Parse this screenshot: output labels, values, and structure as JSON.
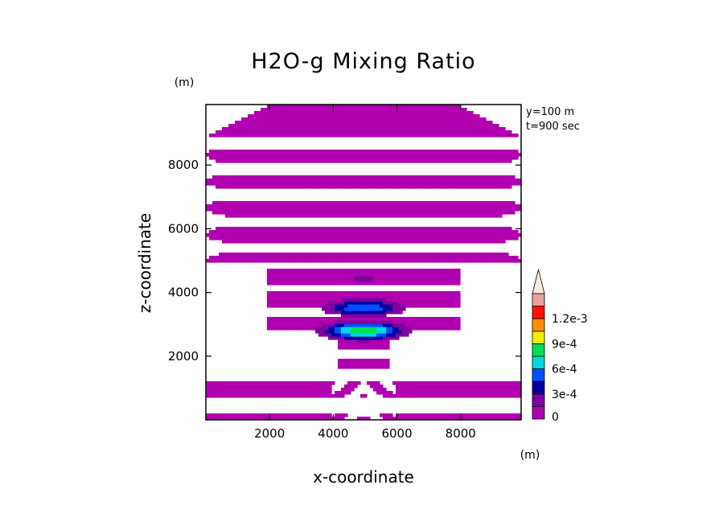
{
  "chart_data": {
    "type": "heatmap",
    "title": "H2O-g Mixing Ratio",
    "xlabel": "x-coordinate",
    "ylabel": "z-coordinate",
    "x_unit": "(m)",
    "y_unit": "(m)",
    "xlim": [
      0,
      9900
    ],
    "ylim": [
      0,
      9900
    ],
    "xticks": [
      2000,
      4000,
      6000,
      8000
    ],
    "yticks": [
      2000,
      4000,
      6000,
      8000
    ],
    "annotations": [
      "y=100 m",
      "t=900 sec"
    ],
    "colorbar": {
      "levels": [
        0,
        0.00015,
        0.0003,
        0.00045,
        0.0006,
        0.00075,
        0.0009,
        0.00105,
        0.0012,
        0.00135
      ],
      "colors": [
        "#b000b0",
        "#8000a0",
        "#0000a0",
        "#0050ff",
        "#00d8e0",
        "#00e050",
        "#f0f000",
        "#ff9000",
        "#ff1000",
        "#f0a0a0",
        "#f8e8e0"
      ],
      "tick_labels": [
        "0",
        "3e-4",
        "6e-4",
        "9e-4",
        "1.2e-3"
      ],
      "tick_values": [
        0,
        0.0003,
        0.0006,
        0.0009,
        0.0012
      ]
    }
  }
}
